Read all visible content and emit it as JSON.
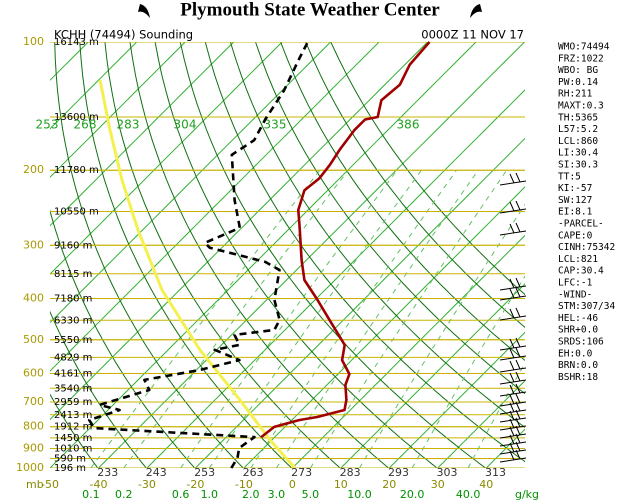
{
  "header": {
    "title": "Plymouth State Weather Center"
  },
  "chart_data": {
    "type": "skewt",
    "station": "KCHH (74494) Sounding",
    "time": "0000Z 11 NOV 17",
    "y_unit": "mb",
    "log_scale": true,
    "ylim": [
      1000,
      100
    ],
    "yticks": [
      100,
      200,
      300,
      400,
      500,
      600,
      700,
      800,
      900,
      1000
    ],
    "xlim": [
      -50,
      48
    ],
    "xticks": [
      -50,
      -40,
      -30,
      -20,
      -10,
      0,
      10,
      20,
      30,
      40
    ],
    "height_levels": [
      {
        "pressure": 100,
        "label": "16143 m"
      },
      {
        "pressure": 150,
        "label": "13600 m"
      },
      {
        "pressure": 200,
        "label": "11780 m"
      },
      {
        "pressure": 250,
        "label": "10550 m"
      },
      {
        "pressure": 300,
        "label": "9160 m"
      },
      {
        "pressure": 350,
        "label": "8115 m"
      },
      {
        "pressure": 400,
        "label": "7180 m"
      },
      {
        "pressure": 450,
        "label": "6330 m"
      },
      {
        "pressure": 500,
        "label": "5550 m"
      },
      {
        "pressure": 550,
        "label": "4829 m"
      },
      {
        "pressure": 600,
        "label": "4161 m"
      },
      {
        "pressure": 650,
        "label": "3540 m"
      },
      {
        "pressure": 700,
        "label": "2959 m"
      },
      {
        "pressure": 750,
        "label": "2413 m"
      },
      {
        "pressure": 800,
        "label": "1912 m"
      },
      {
        "pressure": 850,
        "label": "1450 m"
      },
      {
        "pressure": 900,
        "label": "1010 m"
      },
      {
        "pressure": 950,
        "label": "590 m"
      },
      {
        "pressure": 1000,
        "label": "196 m"
      }
    ],
    "theta_labels": [
      233,
      243,
      253,
      263,
      273,
      283,
      293,
      303,
      313
    ],
    "theta_e_labels": [
      253,
      268,
      283,
      304,
      335,
      386
    ],
    "mixing_ratio_labels": [
      0.1,
      0.2,
      0.6,
      {
        "value": 1,
        "label": "1.0"
      },
      {
        "value": 2,
        "label": "2.0"
      },
      {
        "value": 3,
        "label": "3.0"
      },
      {
        "value": 5,
        "label": "5.0"
      },
      {
        "value": 10,
        "label": "10.0"
      },
      {
        "value": 20,
        "label": "20.0"
      },
      {
        "value": 40,
        "label": "40.0"
      }
    ],
    "mixing_ratio_unit": "g/kg",
    "series": [
      {
        "color": "#a00000",
        "dashed": false,
        "pressure": [
          846,
          801,
          772,
          759,
          731,
          692,
          638,
          602,
          558,
          514,
          449,
          403,
          362,
          325,
          276,
          248,
          223,
          209,
          194,
          179,
          161,
          152,
          150,
          137,
          133,
          126,
          113,
          100
        ],
        "values": [
          -12.8,
          -12.2,
          -8.5,
          -5.4,
          -1.2,
          -2.9,
          -6.2,
          -7.6,
          -12.0,
          -14.6,
          -22.9,
          -29.5,
          -36.3,
          -41.0,
          -47.6,
          -52.0,
          -54.8,
          -54.2,
          -54.8,
          -55.9,
          -56.9,
          -56.9,
          -54.8,
          -57.5,
          -57.3,
          -56.9,
          -59.0,
          -59.6
        ]
      },
      {
        "color": "#000000",
        "dashed": true,
        "pressure": [
          1000,
          947,
          898,
          846,
          806,
          772,
          731,
          711,
          656,
          621,
          589,
          558,
          528,
          514,
          487,
          474,
          449,
          403,
          343,
          328,
          304,
          296,
          273,
          235,
          184,
          170,
          152,
          130,
          109,
          100
        ],
        "values": [
          -12.6,
          -13.4,
          -15.1,
          -14.2,
          -49.1,
          -51.8,
          -47.6,
          -52.8,
          -45.6,
          -48.7,
          -39.4,
          -33.2,
          -40.4,
          -36.3,
          -39.4,
          -32.2,
          -33.2,
          -38.4,
          -43.5,
          -48.2,
          -62.5,
          -64.5,
          -60.4,
          -67.2,
          -77.1,
          -75.5,
          -77.5,
          -79.6,
          -83.1,
          -84.7
        ]
      }
    ]
  },
  "indices": [
    "WMO:74494",
    "FRZ:1022",
    "WBO: BG",
    "PW:0.14",
    "RH:211",
    "MAXT:0.3",
    "TH:5365",
    "L57:5.2",
    "LCL:860",
    "LI:30.4",
    "SI:30.3",
    "TT:5",
    "KI:-57",
    "SW:127",
    "EI:8.1",
    "-PARCEL-",
    "CAPE:0",
    "CINH:75342",
    "LCL:821",
    "CAP:30.4",
    "LFC:-1",
    "-WIND-",
    "STM:307/34",
    "HEL:-46",
    "SHR+0.0",
    "SRDS:106",
    "EH:0.0",
    "BRN:0.0",
    "BSHR:18"
  ]
}
